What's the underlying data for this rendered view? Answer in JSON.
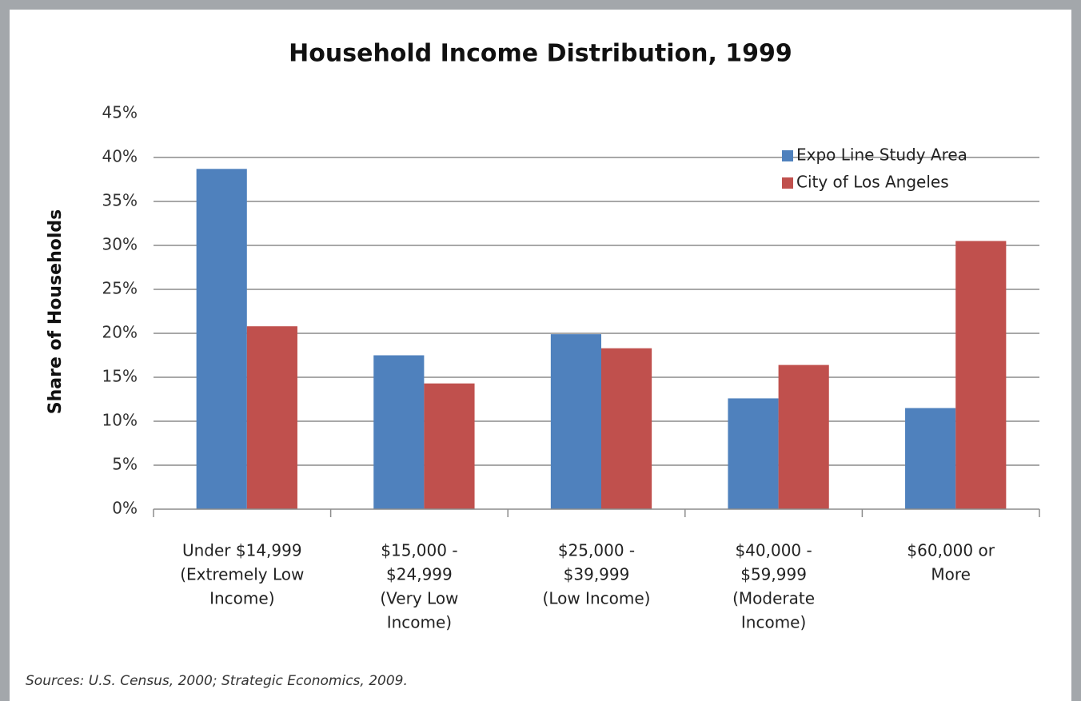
{
  "chart_data": {
    "type": "bar",
    "title": "Household Income Distribution, 1999",
    "ylabel": "Share of Households",
    "categories": [
      [
        "Under $14,999",
        "(Extremely Low",
        "Income)"
      ],
      [
        "$15,000 -",
        "$24,999",
        "(Very Low",
        "Income)"
      ],
      [
        "$25,000 -",
        "$39,999",
        "(Low Income)"
      ],
      [
        "$40,000 -",
        "$59,999",
        "(Moderate",
        "Income)"
      ],
      [
        "$60,000 or",
        "More"
      ]
    ],
    "series": [
      {
        "name": "Expo Line Study Area",
        "color": "#4f81bd",
        "values": [
          38.7,
          17.5,
          19.9,
          12.6,
          11.5
        ]
      },
      {
        "name": "City of Los Angeles",
        "color": "#c0504d",
        "values": [
          20.8,
          14.3,
          18.3,
          16.4,
          30.5
        ]
      }
    ],
    "ylim": [
      0,
      45
    ],
    "yticks": [
      {
        "value": 0,
        "label": "0%"
      },
      {
        "value": 5,
        "label": "5%"
      },
      {
        "value": 10,
        "label": "10%"
      },
      {
        "value": 15,
        "label": "15%"
      },
      {
        "value": 20,
        "label": "20%"
      },
      {
        "value": 25,
        "label": "25%"
      },
      {
        "value": 30,
        "label": "30%"
      },
      {
        "value": 35,
        "label": "35%"
      },
      {
        "value": 40,
        "label": "40%"
      },
      {
        "value": 45,
        "label": "45%"
      }
    ],
    "grid": true,
    "legend": "upper right",
    "source": "Sources: U.S. Census, 2000; Strategic Economics, 2009."
  }
}
